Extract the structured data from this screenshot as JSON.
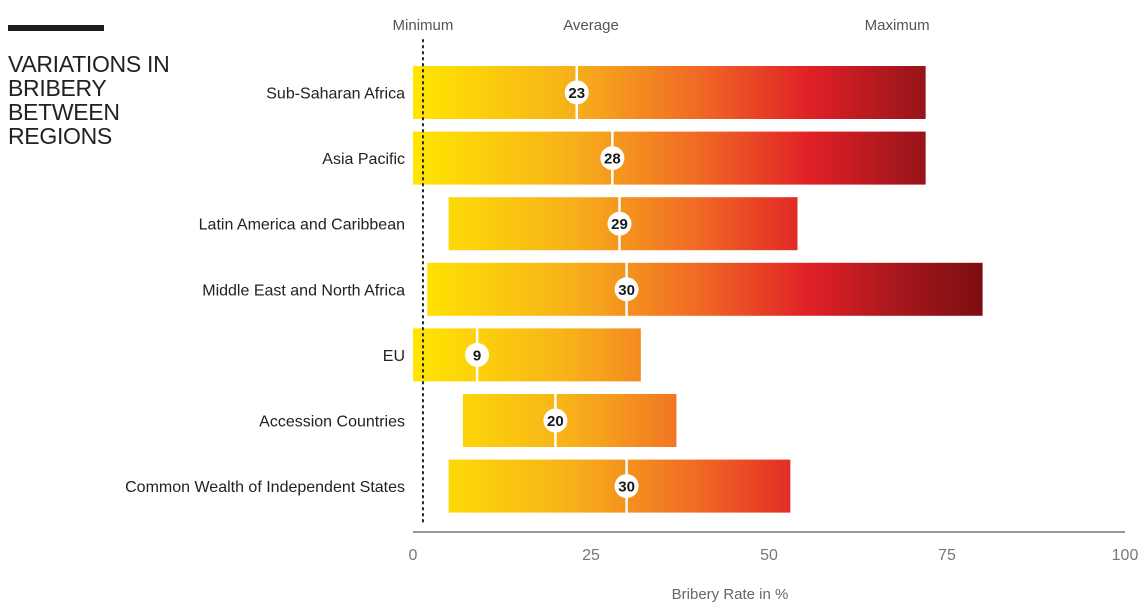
{
  "title_lines": [
    "VARIATIONS IN",
    "BRIBERY",
    "BETWEEN",
    "REGIONS"
  ],
  "chart_data": {
    "type": "bar",
    "subtype": "range-bar-with-average-marker",
    "column_labels": {
      "min": "Minimum",
      "avg": "Average",
      "max": "Maximum"
    },
    "categories": [
      "Sub-Saharan Africa",
      "Asia Pacific",
      "Latin America and Caribbean",
      "Middle East and North Africa",
      "EU",
      "Accession Countries",
      "Common Wealth of Independent States"
    ],
    "series": [
      {
        "name": "Minimum",
        "values": [
          0,
          0,
          5,
          2,
          0,
          7,
          5
        ]
      },
      {
        "name": "Average",
        "values": [
          23,
          28,
          29,
          30,
          9,
          20,
          30
        ]
      },
      {
        "name": "Maximum",
        "values": [
          72,
          72,
          54,
          80,
          32,
          37,
          53
        ]
      }
    ],
    "xlabel": "Bribery Rate in %",
    "xlim": [
      0,
      100
    ],
    "xticks": [
      0,
      25,
      50,
      75,
      100
    ],
    "grid": false,
    "colors": [
      "#ffe600",
      "#f7b01a",
      "#f06a25",
      "#e01f26",
      "#a3171c",
      "#7c0e10"
    ]
  }
}
